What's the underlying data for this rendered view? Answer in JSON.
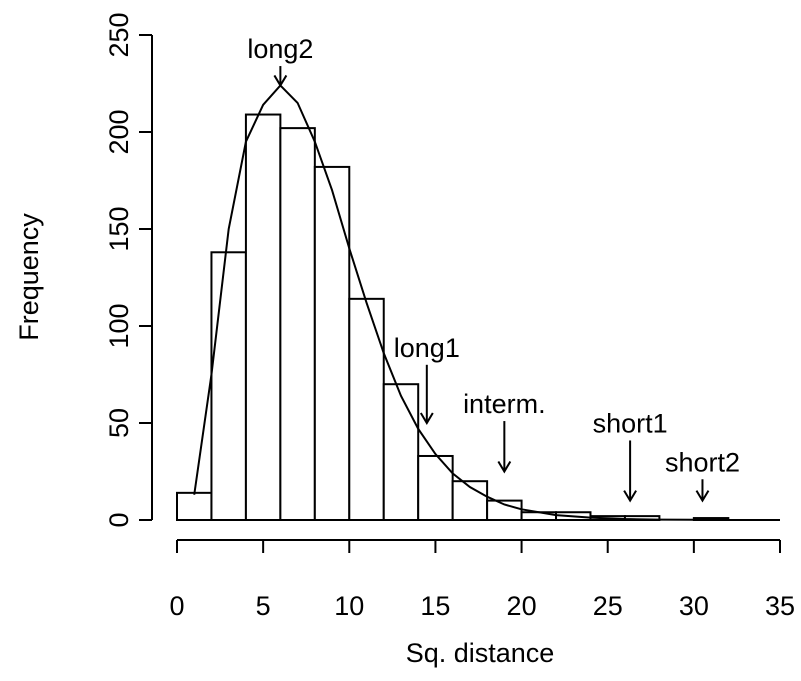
{
  "chart_data": {
    "type": "histogram",
    "xlabel": "Sq. distance",
    "ylabel": "Frequency",
    "bins": [
      0,
      2,
      4,
      6,
      8,
      10,
      12,
      14,
      16,
      18,
      20,
      22,
      24,
      26,
      28,
      30,
      32
    ],
    "values": [
      14,
      138,
      209,
      202,
      182,
      114,
      70,
      33,
      20,
      10,
      4,
      4,
      2,
      2,
      0,
      1
    ],
    "color": "#ffffff",
    "xlim": [
      0,
      35
    ],
    "xticks": [
      0,
      5,
      10,
      15,
      20,
      25,
      30,
      35
    ],
    "ylim": [
      0,
      250
    ],
    "yticks": [
      0,
      50,
      100,
      150,
      200,
      250
    ],
    "curve": {
      "x": [
        1,
        2,
        3,
        4,
        5,
        6,
        7,
        8,
        9,
        10,
        11,
        12,
        13,
        14,
        15,
        16,
        17,
        18,
        19,
        20,
        22,
        24,
        26,
        28,
        30,
        32,
        35
      ],
      "values": [
        13,
        75,
        150,
        195,
        214,
        224,
        215,
        195,
        170,
        140,
        112,
        86,
        64,
        47,
        34,
        24,
        17,
        12,
        8,
        5.5,
        2.5,
        1.2,
        0.5,
        0.2,
        0.1,
        0,
        0
      ]
    },
    "annotations": [
      {
        "text": "long2",
        "x": 6,
        "y_start": 234,
        "y_end": 224
      },
      {
        "text": "long1",
        "x": 14.5,
        "y_start": 80,
        "y_end": 50
      },
      {
        "text": "interm.",
        "x": 19,
        "y_start": 51,
        "y_end": 25
      },
      {
        "text": "short1",
        "x": 26.3,
        "y_start": 41,
        "y_end": 10
      },
      {
        "text": "short2",
        "x": 30.5,
        "y_start": 21,
        "y_end": 10
      }
    ]
  }
}
